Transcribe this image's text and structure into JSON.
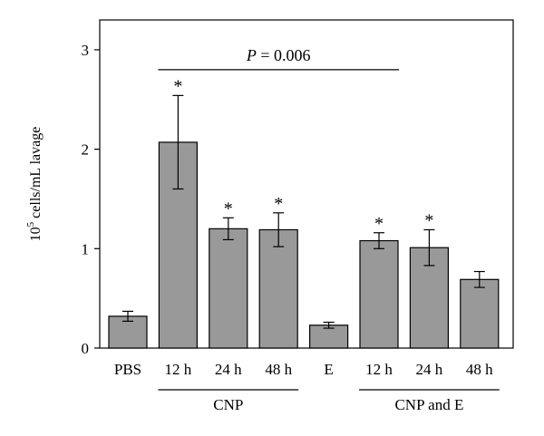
{
  "chart_data": {
    "type": "bar",
    "ylabel_base": "10",
    "ylabel_exp": "5",
    "ylabel_rest": " cells/mL lavage",
    "ylim": [
      0,
      3.3
    ],
    "yticks": [
      "0",
      "1",
      "2",
      "3"
    ],
    "categories": [
      "PBS",
      "12 h",
      "24 h",
      "48 h",
      "E",
      "12 h",
      "24 h",
      "48 h"
    ],
    "values": [
      0.32,
      2.07,
      1.2,
      1.19,
      0.23,
      1.08,
      1.01,
      0.69
    ],
    "errors": [
      0.05,
      0.47,
      0.11,
      0.17,
      0.03,
      0.08,
      0.18,
      0.08
    ],
    "significance": [
      "",
      "*",
      "*",
      "*",
      "",
      "*",
      "*",
      ""
    ],
    "groups": [
      {
        "label": "CNP",
        "start": 1,
        "end": 3
      },
      {
        "label": "CNP and E",
        "start": 5,
        "end": 7
      }
    ],
    "comparison": {
      "p_label": "P",
      "p_value": " = 0.006",
      "from": 1,
      "to": 5,
      "y": 2.8
    },
    "bar_color": "#999999",
    "grid": false
  }
}
